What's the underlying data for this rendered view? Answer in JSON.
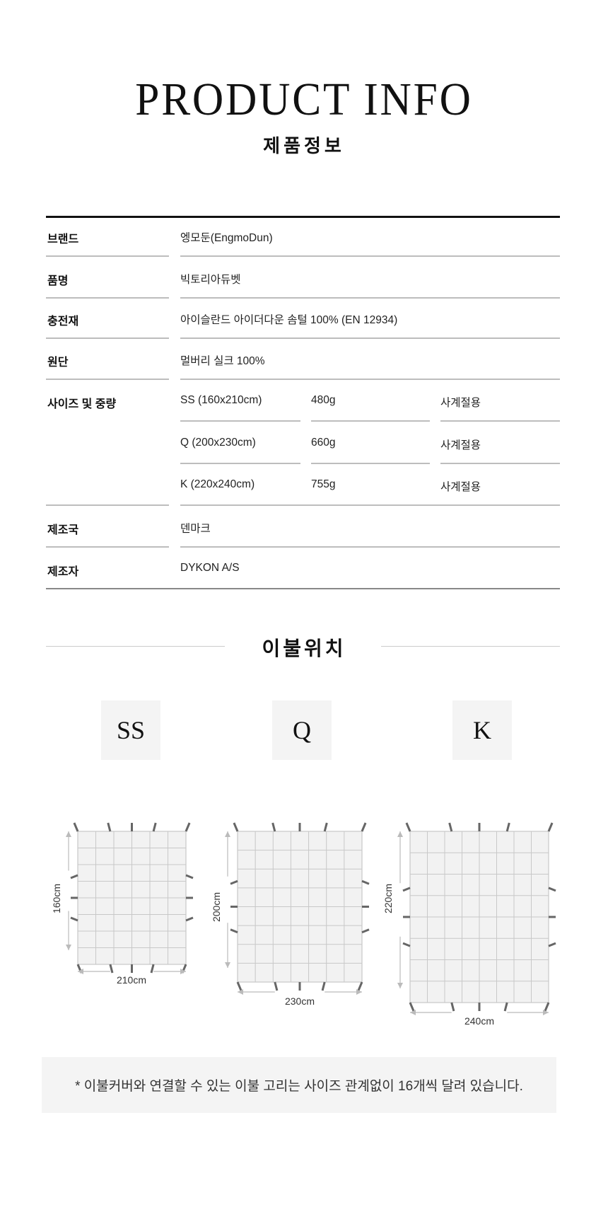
{
  "header": {
    "title": "PRODUCT INFO",
    "subtitle": "제품정보"
  },
  "table": {
    "rows": [
      {
        "label": "브랜드",
        "value": "엥모둔(EngmoDun)"
      },
      {
        "label": "품명",
        "value": "빅토리아듀벳"
      },
      {
        "label": "충전재",
        "value": "아이슬란드 아이더다운 솜털 100% (EN 12934)"
      },
      {
        "label": "원단",
        "value": "멀버리 실크 100%"
      }
    ],
    "size_label": "사이즈 및 중량",
    "sizes": [
      {
        "size": "SS (160x210cm)",
        "weight": "480g",
        "season": "사계절용"
      },
      {
        "size": "Q (200x230cm)",
        "weight": "660g",
        "season": "사계절용"
      },
      {
        "size": "K (220x240cm)",
        "weight": "755g",
        "season": "사계절용"
      }
    ],
    "rows_after": [
      {
        "label": "제조국",
        "value": "덴마크"
      },
      {
        "label": "제조자",
        "value": "DYKON A/S"
      }
    ]
  },
  "tie_section": {
    "title": "이불위치",
    "sizes": [
      {
        "code": "SS",
        "width": "210cm",
        "height": "160cm"
      },
      {
        "code": "Q",
        "width": "230cm",
        "height": "200cm"
      },
      {
        "code": "K",
        "width": "240cm",
        "height": "220cm"
      }
    ],
    "note": "* 이불커버와 연결할 수 있는 이불 고리는 사이즈 관계없이 16개씩 달려 있습니다."
  },
  "colors": {
    "grid_fill": "#f2f2f2",
    "grid_line": "#c8c8c8",
    "tie": "#666666",
    "arrow": "#bbbbbb",
    "panel": "#f4f4f4"
  }
}
